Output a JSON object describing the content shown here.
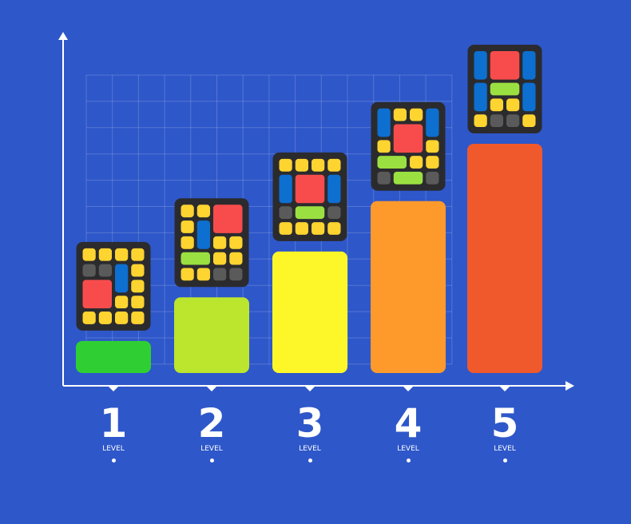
{
  "chart_data": {
    "type": "bar",
    "title": "",
    "xlabel": "",
    "ylabel": "",
    "categories": [
      "1",
      "2",
      "3",
      "4",
      "5"
    ],
    "category_caption": "LEVEL",
    "values": [
      14,
      33,
      53,
      75,
      100
    ],
    "ylim": [
      0,
      100
    ],
    "grid": true,
    "bar_colors": [
      "#2fcf34",
      "#bce52e",
      "#fdf72a",
      "#fd9a2b",
      "#f0592b"
    ],
    "piece_colors": {
      "Y": "#fed430",
      "B": "#0d6fd0",
      "R": "#f84c4c",
      "G": "#9be041",
      "D": "#5a5a5a"
    },
    "puzzles": [
      [
        [
          "Y",
          0,
          0,
          1,
          1
        ],
        [
          "Y",
          1,
          0,
          1,
          1
        ],
        [
          "Y",
          2,
          0,
          1,
          1
        ],
        [
          "Y",
          3,
          0,
          1,
          1
        ],
        [
          "D",
          0,
          1,
          1,
          1
        ],
        [
          "D",
          1,
          1,
          1,
          1
        ],
        [
          "B",
          2,
          1,
          1,
          2
        ],
        [
          "Y",
          3,
          1,
          1,
          1
        ],
        [
          "R",
          0,
          2,
          2,
          2
        ],
        [
          "Y",
          3,
          2,
          1,
          1
        ],
        [
          "Y",
          2,
          3,
          1,
          1
        ],
        [
          "Y",
          3,
          3,
          1,
          1
        ],
        [
          "Y",
          0,
          4,
          1,
          1
        ],
        [
          "Y",
          1,
          4,
          1,
          1
        ],
        [
          "Y",
          2,
          4,
          1,
          1
        ],
        [
          "Y",
          3,
          4,
          1,
          1
        ]
      ],
      [
        [
          "Y",
          0,
          0,
          1,
          1
        ],
        [
          "Y",
          1,
          0,
          1,
          1
        ],
        [
          "R",
          2,
          0,
          2,
          2
        ],
        [
          "Y",
          0,
          1,
          1,
          1
        ],
        [
          "B",
          1,
          1,
          1,
          2
        ],
        [
          "Y",
          0,
          2,
          1,
          1
        ],
        [
          "Y",
          2,
          2,
          1,
          1
        ],
        [
          "Y",
          3,
          2,
          1,
          1
        ],
        [
          "G",
          0,
          3,
          2,
          1
        ],
        [
          "Y",
          2,
          3,
          1,
          1
        ],
        [
          "Y",
          3,
          3,
          1,
          1
        ],
        [
          "Y",
          0,
          4,
          1,
          1
        ],
        [
          "Y",
          1,
          4,
          1,
          1
        ],
        [
          "D",
          2,
          4,
          1,
          1
        ],
        [
          "D",
          3,
          4,
          1,
          1
        ]
      ],
      [
        [
          "Y",
          0,
          0,
          1,
          1
        ],
        [
          "Y",
          1,
          0,
          1,
          1
        ],
        [
          "Y",
          2,
          0,
          1,
          1
        ],
        [
          "Y",
          3,
          0,
          1,
          1
        ],
        [
          "B",
          0,
          1,
          1,
          2
        ],
        [
          "R",
          1,
          1,
          2,
          2
        ],
        [
          "B",
          3,
          1,
          1,
          2
        ],
        [
          "D",
          0,
          3,
          1,
          1
        ],
        [
          "G",
          1,
          3,
          2,
          1
        ],
        [
          "D",
          3,
          3,
          1,
          1
        ],
        [
          "Y",
          0,
          4,
          1,
          1
        ],
        [
          "Y",
          1,
          4,
          1,
          1
        ],
        [
          "Y",
          2,
          4,
          1,
          1
        ],
        [
          "Y",
          3,
          4,
          1,
          1
        ]
      ],
      [
        [
          "B",
          0,
          0,
          1,
          2
        ],
        [
          "Y",
          1,
          0,
          1,
          1
        ],
        [
          "Y",
          2,
          0,
          1,
          1
        ],
        [
          "B",
          3,
          0,
          1,
          2
        ],
        [
          "R",
          1,
          1,
          2,
          2
        ],
        [
          "Y",
          0,
          2,
          1,
          1
        ],
        [
          "Y",
          3,
          2,
          1,
          1
        ],
        [
          "G",
          0,
          3,
          2,
          1
        ],
        [
          "Y",
          2,
          3,
          1,
          1
        ],
        [
          "Y",
          3,
          3,
          1,
          1
        ],
        [
          "D",
          0,
          4,
          1,
          1
        ],
        [
          "G",
          1,
          4,
          2,
          1
        ],
        [
          "D",
          3,
          4,
          1,
          1
        ]
      ],
      [
        [
          "B",
          0,
          0,
          1,
          2
        ],
        [
          "R",
          1,
          0,
          2,
          2
        ],
        [
          "B",
          3,
          0,
          1,
          2
        ],
        [
          "B",
          0,
          2,
          1,
          2
        ],
        [
          "G",
          1,
          2,
          2,
          1
        ],
        [
          "B",
          3,
          2,
          1,
          2
        ],
        [
          "Y",
          1,
          3,
          1,
          1
        ],
        [
          "Y",
          2,
          3,
          1,
          1
        ],
        [
          "Y",
          0,
          4,
          1,
          1
        ],
        [
          "D",
          1,
          4,
          1,
          1
        ],
        [
          "D",
          2,
          4,
          1,
          1
        ],
        [
          "Y",
          3,
          4,
          1,
          1
        ]
      ]
    ]
  }
}
